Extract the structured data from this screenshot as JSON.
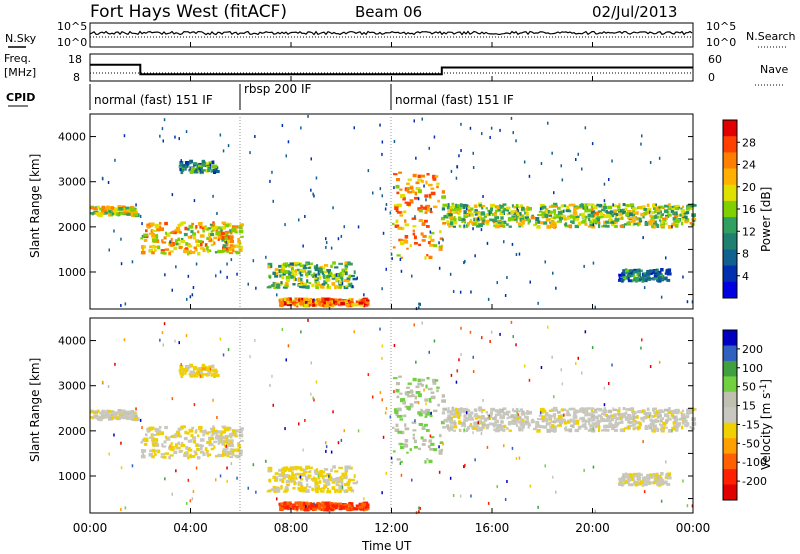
{
  "header": {
    "station": "Fort Hays West (fitACF)",
    "beam": "Beam 06",
    "date": "02/Jul/2013"
  },
  "panels": {
    "noise": {
      "left_label": "N.Sky",
      "left_ticks": [
        "10^5",
        "10^0"
      ],
      "right_label": "N.Search",
      "right_ticks": [
        "10^5",
        "10^0"
      ]
    },
    "freq": {
      "left_label_1": "Freq.",
      "left_label_2": "[MHz]",
      "left_ticks": [
        "18",
        "8"
      ],
      "right_label": "Nave",
      "right_ticks": [
        "60",
        "0"
      ]
    },
    "cpid": {
      "label": "CPID",
      "segments": [
        "normal (fast) 151 IF",
        "rbsp 200 IF",
        "normal (fast) 151 IF"
      ]
    }
  },
  "power_panel": {
    "ylabel": "Slant Range [km]",
    "yticks": [
      "4000",
      "3000",
      "2000",
      "1000"
    ],
    "colorbar_label": "Power [dB]",
    "colorbar_ticks": [
      "28",
      "24",
      "20",
      "16",
      "12",
      "8",
      "4"
    ],
    "colorbar_colors": [
      "#e00000",
      "#ff4000",
      "#ff8000",
      "#ffb000",
      "#e0e000",
      "#80d000",
      "#30a060",
      "#208070",
      "#106090",
      "#0030b0",
      "#0000e0"
    ]
  },
  "velocity_panel": {
    "ylabel": "Slant Range [km]",
    "yticks": [
      "4000",
      "3000",
      "2000",
      "1000"
    ],
    "colorbar_label": "Velocity [m s",
    "colorbar_label_sup": "-1",
    "colorbar_ticks": [
      "200",
      "100",
      "50",
      "15",
      "-15",
      "-50",
      "-100",
      "-200"
    ],
    "colorbar_colors": [
      "#0000c0",
      "#3060c0",
      "#40a040",
      "#70d040",
      "#c0c0b0",
      "#c8c8c0",
      "#f0d000",
      "#ffa000",
      "#ff6000",
      "#ff2000",
      "#e00000"
    ]
  },
  "xaxis": {
    "label": "Time UT",
    "ticks": [
      "00:00",
      "04:00",
      "08:00",
      "12:00",
      "16:00",
      "20:00",
      "00:00"
    ]
  },
  "chart_data": {
    "type": "heatmap",
    "title": "Fort Hays West (fitACF) Beam 06 02/Jul/2013",
    "xlabel": "Time UT",
    "ylabel": "Slant Range [km]",
    "xlim_hours": [
      0,
      24
    ],
    "ylim_km": [
      180,
      4500
    ],
    "colorbars": [
      {
        "name": "Power [dB]",
        "ticks": [
          4,
          8,
          12,
          16,
          20,
          24,
          28
        ]
      },
      {
        "name": "Velocity [m s-1]",
        "ticks": [
          -200,
          -100,
          -50,
          -15,
          15,
          50,
          100,
          200
        ]
      }
    ],
    "frequency_mhz": [
      {
        "from": 0,
        "to": 2,
        "value": 14
      },
      {
        "from": 2,
        "to": 14,
        "value": 10.5
      },
      {
        "from": 14,
        "to": 24,
        "value": 13
      }
    ],
    "cpid": [
      {
        "from": 0,
        "to": 6,
        "name": "normal (fast) 151 IF"
      },
      {
        "from": 6,
        "to": 12,
        "name": "rbsp 200 IF"
      },
      {
        "from": 12,
        "to": 24,
        "name": "normal (fast) 151 IF"
      }
    ],
    "echo_bands": [
      {
        "t0": 0.0,
        "t1": 1.8,
        "r0": 2250,
        "r1": 2450,
        "power": 18,
        "velocity": 0
      },
      {
        "t0": 2.0,
        "t1": 6.0,
        "r0": 1400,
        "r1": 2100,
        "power": 20,
        "velocity": -20
      },
      {
        "t0": 3.5,
        "t1": 5.0,
        "r0": 3200,
        "r1": 3450,
        "power": 10,
        "velocity": -40
      },
      {
        "t0": 7.0,
        "t1": 10.5,
        "r0": 650,
        "r1": 1200,
        "power": 14,
        "velocity": -30
      },
      {
        "t0": 7.5,
        "t1": 11.0,
        "r0": 250,
        "r1": 400,
        "power": 24,
        "velocity": -150
      },
      {
        "t0": 12.0,
        "t1": 14.0,
        "r0": 1300,
        "r1": 3200,
        "power": 22,
        "velocity": 60
      },
      {
        "t0": 14.0,
        "t1": 24.0,
        "r0": 2000,
        "r1": 2500,
        "power": 16,
        "velocity": 0
      },
      {
        "t0": 21.0,
        "t1": 23.0,
        "r0": 800,
        "r1": 1050,
        "power": 8,
        "velocity": -10
      }
    ]
  }
}
